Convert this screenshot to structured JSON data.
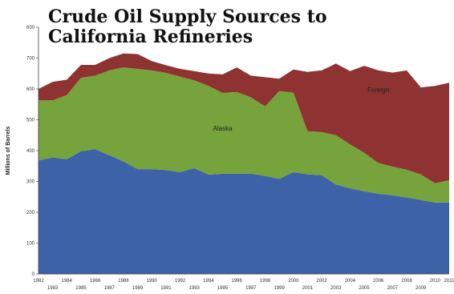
{
  "chart_data": {
    "type": "area",
    "stacked": true,
    "title_line1": "Crude Oil Supply Sources to",
    "title_line2": "California Refineries",
    "ylabel": "Millions of Barrels",
    "ylim": [
      0,
      800
    ],
    "yticks": [
      "0",
      "100",
      "200",
      "300",
      "400",
      "500",
      "600",
      "700",
      "800"
    ],
    "xlim": [
      1982,
      2011
    ],
    "xticks_top": [
      "1982",
      "1984",
      "1986",
      "1988",
      "1990",
      "1992",
      "1994",
      "1996",
      "1998",
      "2000",
      "2002",
      "2004",
      "2006",
      "2008",
      "2010",
      "2011"
    ],
    "xticks_bottom": [
      "1983",
      "1985",
      "1987",
      "1989",
      "1991",
      "1993",
      "1995",
      "1997",
      "1999",
      "2001",
      "2003",
      "2005",
      "2007",
      "2009"
    ],
    "x": [
      1982,
      1983,
      1984,
      1985,
      1986,
      1987,
      1988,
      1989,
      1990,
      1991,
      1992,
      1993,
      1994,
      1995,
      1996,
      1997,
      1998,
      1999,
      2000,
      2001,
      2002,
      2003,
      2004,
      2005,
      2006,
      2007,
      2008,
      2009,
      2010,
      2011
    ],
    "series": [
      {
        "name": "",
        "color": "#3e62a8",
        "values": [
          368,
          378,
          372,
          398,
          405,
          385,
          365,
          340,
          340,
          337,
          330,
          343,
          322,
          325,
          325,
          325,
          318,
          308,
          330,
          323,
          320,
          290,
          278,
          268,
          260,
          255,
          248,
          240,
          232,
          232
        ]
      },
      {
        "name": "Alaska",
        "color": "#76a33b",
        "values": [
          195,
          185,
          208,
          238,
          238,
          275,
          305,
          325,
          320,
          315,
          310,
          285,
          288,
          262,
          265,
          248,
          225,
          285,
          258,
          140,
          140,
          160,
          142,
          125,
          100,
          93,
          90,
          83,
          62,
          72
        ]
      },
      {
        "name": "Foreign",
        "color": "#8e3232",
        "values": [
          37,
          60,
          50,
          42,
          35,
          40,
          45,
          48,
          30,
          25,
          25,
          30,
          40,
          60,
          80,
          70,
          95,
          40,
          75,
          192,
          200,
          232,
          238,
          282,
          300,
          305,
          322,
          282,
          316,
          316
        ]
      }
    ],
    "label_positions": [
      {
        "series": "Alaska",
        "x": 1995,
        "y": 465
      },
      {
        "series": "Foreign",
        "x": 2006,
        "y": 590
      }
    ],
    "grid": false,
    "legend": "none"
  }
}
